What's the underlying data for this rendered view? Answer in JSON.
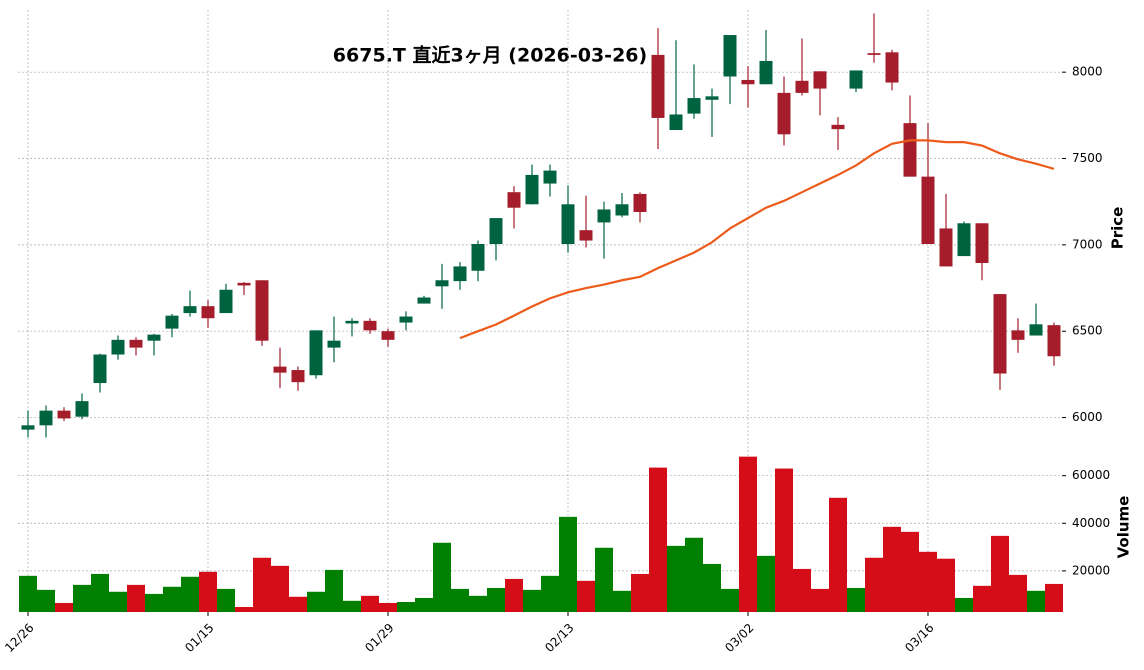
{
  "chart_data": {
    "type": "candlestick",
    "title": "6675.T  直近3ヶ月  (2026-03-26)",
    "ylabel": "Price",
    "categories": [
      "12/26",
      null,
      null,
      null,
      null,
      null,
      null,
      null,
      null,
      null,
      "01/15",
      null,
      null,
      null,
      null,
      null,
      null,
      null,
      null,
      null,
      "01/29",
      null,
      null,
      null,
      null,
      null,
      null,
      null,
      null,
      null,
      "02/13",
      null,
      null,
      null,
      null,
      null,
      null,
      null,
      null,
      null,
      "03/02",
      null,
      null,
      null,
      null,
      null,
      null,
      null,
      null,
      null,
      "03/16",
      null,
      null,
      null,
      null,
      null,
      null,
      null
    ],
    "open": [
      5930,
      5955,
      6040,
      6005,
      6200,
      6365,
      6450,
      6445,
      6515,
      6605,
      6645,
      6605,
      6780,
      6795,
      6295,
      6275,
      6245,
      6405,
      6545,
      6560,
      6500,
      6550,
      6660,
      6760,
      6790,
      6850,
      7005,
      7305,
      7235,
      7355,
      7005,
      7085,
      7130,
      7170,
      7295,
      8100,
      7665,
      7760,
      7840,
      7975,
      7955,
      7930,
      7880,
      7950,
      8005,
      7695,
      7905,
      8110,
      8115,
      7705,
      7395,
      7095,
      6935,
      7125,
      6715,
      6505,
      6475,
      6535
    ],
    "high": [
      6040,
      6070,
      6060,
      6140,
      6370,
      6475,
      6465,
      6485,
      6600,
      6735,
      6680,
      6775,
      6785,
      6795,
      6405,
      6295,
      6505,
      6585,
      6575,
      6575,
      6515,
      6615,
      6705,
      6890,
      6900,
      7025,
      7155,
      7340,
      7465,
      7465,
      7345,
      7285,
      7250,
      7300,
      7305,
      8255,
      8185,
      8045,
      7905,
      8215,
      8035,
      8245,
      7975,
      8195,
      8005,
      7740,
      8010,
      8340,
      8130,
      7865,
      7705,
      7295,
      7135,
      7125,
      6715,
      6575,
      6660,
      6550
    ],
    "low": [
      5885,
      5885,
      5980,
      5990,
      6145,
      6335,
      6360,
      6360,
      6465,
      6585,
      6520,
      6605,
      6710,
      6415,
      6170,
      6155,
      6225,
      6320,
      6470,
      6485,
      6410,
      6505,
      6660,
      6630,
      6740,
      6790,
      6910,
      7095,
      7235,
      7280,
      6955,
      6985,
      6920,
      7160,
      7130,
      7555,
      7665,
      7730,
      7625,
      7815,
      7795,
      7930,
      7575,
      7865,
      7750,
      7550,
      7885,
      8055,
      7895,
      7395,
      7005,
      6875,
      6935,
      6795,
      6160,
      6375,
      6475,
      6300
    ],
    "close": [
      5955,
      6040,
      5995,
      6095,
      6365,
      6450,
      6405,
      6480,
      6590,
      6645,
      6575,
      6740,
      6765,
      6445,
      6260,
      6205,
      6505,
      6445,
      6560,
      6505,
      6450,
      6585,
      6695,
      6795,
      6875,
      7005,
      7155,
      7215,
      7405,
      7430,
      7235,
      7025,
      7205,
      7235,
      7190,
      7735,
      7755,
      7850,
      7860,
      8215,
      7930,
      8065,
      7640,
      7880,
      7905,
      7670,
      8010,
      8100,
      7940,
      7395,
      7005,
      6875,
      7125,
      6895,
      6255,
      6450,
      6540,
      6355
    ],
    "up_color": "#006340",
    "down_color": "#a51d2b",
    "ma_values": [
      null,
      null,
      null,
      null,
      null,
      null,
      null,
      null,
      null,
      null,
      null,
      null,
      null,
      null,
      null,
      null,
      null,
      null,
      null,
      null,
      null,
      null,
      null,
      null,
      6460,
      6500,
      6539,
      6590,
      6643,
      6690,
      6725,
      6750,
      6770,
      6795,
      6815,
      6865,
      6910,
      6955,
      7015,
      7095,
      7155,
      7215,
      7255,
      7305,
      7355,
      7405,
      7460,
      7530,
      7585,
      7605,
      7605,
      7595,
      7595,
      7575,
      7530,
      7495,
      7470,
      7440
    ],
    "ma_color": "#ec5b1a",
    "ylim": [
      5870,
      8360
    ],
    "yticks": [
      6000,
      6500,
      7000,
      7500,
      8000
    ],
    "grid": true,
    "volume": {
      "ylabel": "Volume",
      "up_color": "#007f00",
      "down_color": "#d50d18",
      "values": [
        17900,
        12000,
        6500,
        14100,
        18700,
        11200,
        14100,
        10300,
        13300,
        17500,
        19600,
        12400,
        4800,
        25500,
        22100,
        9100,
        11200,
        20400,
        7400,
        9500,
        6500,
        6900,
        8600,
        31800,
        12400,
        9500,
        12800,
        16600,
        12000,
        17900,
        42700,
        15800,
        29700,
        11600,
        18700,
        63400,
        30500,
        33900,
        22900,
        12400,
        68000,
        26300,
        63000,
        20800,
        12400,
        50700,
        12800,
        25500,
        38500,
        36400,
        28000,
        25100,
        8600,
        13700,
        34700,
        18300,
        11600,
        14500
      ],
      "ylim": [
        2700,
        75000
      ],
      "yticks": [
        20000,
        40000,
        60000
      ]
    }
  }
}
